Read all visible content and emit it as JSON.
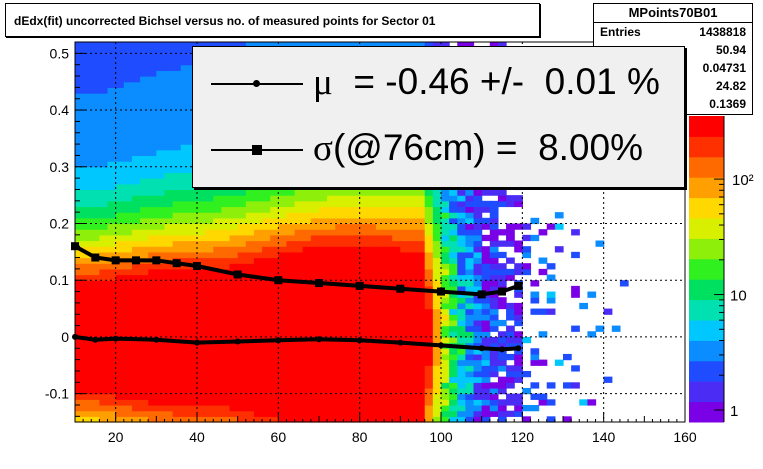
{
  "chart_data": {
    "type": "heatmap",
    "title": "dEdx(fit) uncorrected Bichsel versus no. of measured points for Sector 01",
    "xlim": [
      10,
      160
    ],
    "ylim": [
      -0.15,
      0.52
    ],
    "x_ticks": [
      "20",
      "40",
      "60",
      "80",
      "100",
      "120",
      "140",
      "160"
    ],
    "y_ticks": [
      "-0.1",
      "0",
      "0.1",
      "0.2",
      "0.3",
      "0.4",
      "0.5"
    ],
    "grid": true,
    "colorbar": {
      "scale": "log",
      "ticks": [
        "1",
        "10",
        "10²"
      ],
      "palette": [
        "#7a00e6",
        "#4a2cf5",
        "#1f4cff",
        "#0b8cff",
        "#00c8ff",
        "#00e0b0",
        "#00e060",
        "#30f020",
        "#8ef00a",
        "#d8f000",
        "#ffd800",
        "#ffa000",
        "#ff6a00",
        "#ff3000",
        "#ff0000"
      ]
    },
    "series": [
      {
        "marker": "circle",
        "x": [
          10,
          15,
          20,
          30,
          40,
          50,
          60,
          70,
          80,
          90,
          100,
          110,
          115,
          119
        ],
        "y": [
          0.0,
          -0.005,
          -0.003,
          -0.005,
          -0.01,
          -0.008,
          -0.006,
          -0.004,
          -0.006,
          -0.01,
          -0.015,
          -0.02,
          -0.022,
          -0.02
        ]
      },
      {
        "marker": "square",
        "x": [
          10,
          15,
          20,
          25,
          30,
          35,
          40,
          50,
          60,
          70,
          80,
          90,
          100,
          110,
          115,
          119
        ],
        "y": [
          0.16,
          0.14,
          0.135,
          0.135,
          0.135,
          0.13,
          0.125,
          0.11,
          0.1,
          0.095,
          0.09,
          0.085,
          0.08,
          0.075,
          0.08,
          0.09
        ]
      }
    ],
    "stats": {
      "name": "MPoints70B01",
      "rows": [
        {
          "label": "Entries",
          "value": "1438818"
        },
        {
          "label": "",
          "value": "50.94"
        },
        {
          "label": "",
          "value": "0.04731"
        },
        {
          "label": "",
          "value": "24.82"
        },
        {
          "label": "",
          "value": "0.1369"
        }
      ]
    },
    "legend": {
      "entries": [
        {
          "marker": "circle",
          "symbol": "μ",
          "text": "  = -0.46 +/-  0.01 %"
        },
        {
          "marker": "square",
          "symbol": "σ",
          "text": "(@76cm) =  8.00%"
        }
      ]
    }
  }
}
